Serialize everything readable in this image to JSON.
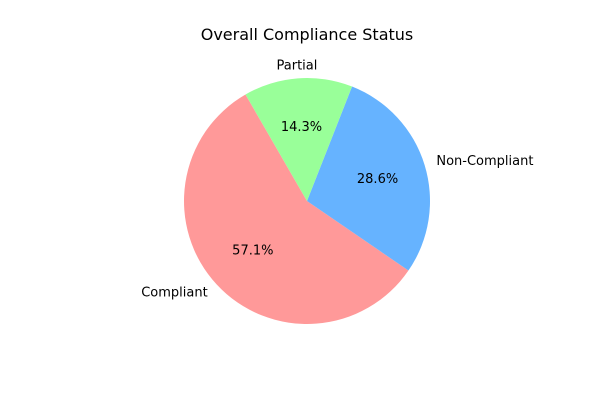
{
  "chart_data": {
    "type": "pie",
    "title": "Overall Compliance Status",
    "categories": [
      "Compliant",
      "Non-Compliant",
      "Partial"
    ],
    "values": [
      57.1,
      28.6,
      14.3
    ],
    "labels": [
      "57.1%",
      "28.6%",
      "14.3%"
    ],
    "colors": [
      "#ff9999",
      "#66b3ff",
      "#99ff99"
    ],
    "start_angle_deg": 120,
    "direction": "counterclockwise",
    "legend": "none"
  }
}
